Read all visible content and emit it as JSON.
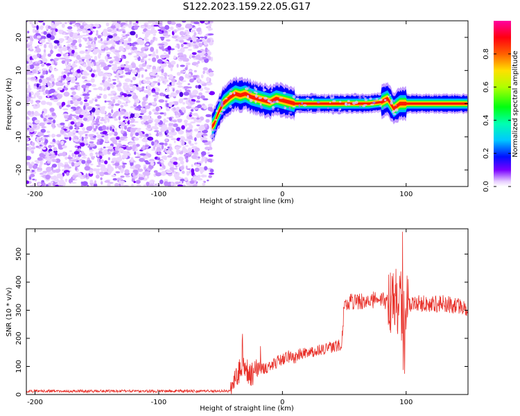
{
  "title": "S122.2023.159.22.05.G17",
  "chart_data": [
    {
      "type": "heatmap",
      "xlabel": "Height of straight line (km)",
      "ylabel": "Frequency (Hz)",
      "xlim": [
        -207,
        150
      ],
      "ylim": [
        -25,
        25
      ],
      "xticks": [
        -200,
        -100,
        0,
        100
      ],
      "xtick_labels": [
        "-200",
        "-100",
        "0",
        "100"
      ],
      "yticks": [
        -20,
        -10,
        0,
        10,
        20
      ],
      "ytick_labels": [
        "-20",
        "-10",
        "0",
        "10",
        "20"
      ],
      "noise_region_x": [
        -207,
        -57
      ],
      "ridge": {
        "x": [
          -57,
          -55,
          -52,
          -48,
          -45,
          -42,
          -38,
          -34,
          -30,
          -25,
          -20,
          -15,
          -10,
          -5,
          0,
          5,
          10,
          20,
          30,
          40,
          50,
          60,
          70,
          80,
          85,
          90,
          95,
          100,
          110,
          120,
          130,
          140,
          150
        ],
        "y": [
          -7,
          -6,
          -3,
          0,
          1,
          2,
          3,
          2.5,
          3,
          2,
          1.5,
          1,
          0.5,
          1.5,
          1,
          0.5,
          0,
          0,
          0,
          0,
          0,
          0,
          0,
          0.5,
          1.5,
          -1.5,
          0,
          0,
          0,
          0,
          0,
          0,
          0
        ]
      },
      "colorbar": {
        "label": "Normalized spectral amplitude",
        "range": [
          0,
          1
        ],
        "ticks": [
          0.0,
          0.2,
          0.4,
          0.6,
          0.8
        ],
        "tick_labels": [
          "0.0",
          "0.2",
          "0.4",
          "0.6",
          "0.8"
        ],
        "colormap": "gist_rainbow"
      },
      "grid": false
    },
    {
      "type": "line",
      "xlabel": "Height of straight line (km)",
      "ylabel": "SNR (10 * v/v)",
      "xlim": [
        -207,
        150
      ],
      "ylim": [
        0,
        590
      ],
      "xticks": [
        -200,
        -100,
        0,
        100
      ],
      "xtick_labels": [
        "-200",
        "-100",
        "0",
        "100"
      ],
      "yticks": [
        0,
        100,
        200,
        300,
        400,
        500
      ],
      "ytick_labels": [
        "0",
        "100",
        "200",
        "300",
        "400",
        "500"
      ],
      "color": "#e8312a",
      "grid": false,
      "series": [
        {
          "x": [
            -207,
            -180,
            -150,
            -120,
            -90,
            -60,
            -42,
            -38,
            -35,
            -32,
            -30,
            -28,
            -25,
            -22,
            -18,
            -15,
            -10,
            -5,
            0,
            5,
            10,
            15,
            20,
            30,
            40,
            48,
            50,
            55,
            60,
            70,
            80,
            85,
            90,
            93,
            95,
            97,
            98,
            100,
            105,
            110,
            120,
            130,
            140,
            150
          ],
          "y": [
            12,
            12,
            12,
            12,
            12,
            12,
            12,
            60,
            80,
            90,
            100,
            80,
            70,
            85,
            95,
            90,
            105,
            115,
            125,
            135,
            130,
            145,
            150,
            160,
            170,
            175,
            330,
            330,
            330,
            335,
            340,
            330,
            340,
            320,
            330,
            300,
            260,
            330,
            320,
            325,
            320,
            325,
            315,
            310
          ]
        }
      ]
    }
  ]
}
